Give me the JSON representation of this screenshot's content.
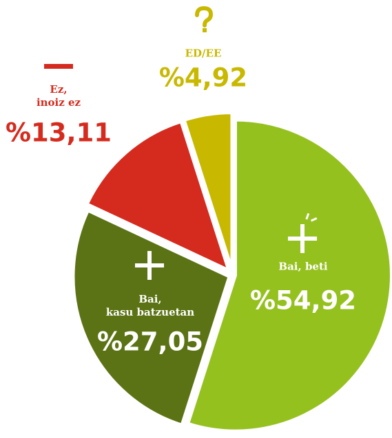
{
  "chart_data": {
    "type": "pie",
    "categories": [
      "Bai, beti",
      "Bai,\nkasu batzuetan",
      "Ez,\ninoiz ez",
      "ED/EE"
    ],
    "values": [
      54.92,
      27.05,
      13.11,
      4.92
    ],
    "value_labels": [
      "%54,92",
      "%27,05",
      "%13,11",
      "%4,92"
    ],
    "colors": [
      "#95c11f",
      "#5b7314",
      "#d52b1e",
      "#c8b900"
    ],
    "label_colors": [
      "#ffffff",
      "#ffffff",
      "#d52b1e",
      "#c8b900"
    ]
  }
}
